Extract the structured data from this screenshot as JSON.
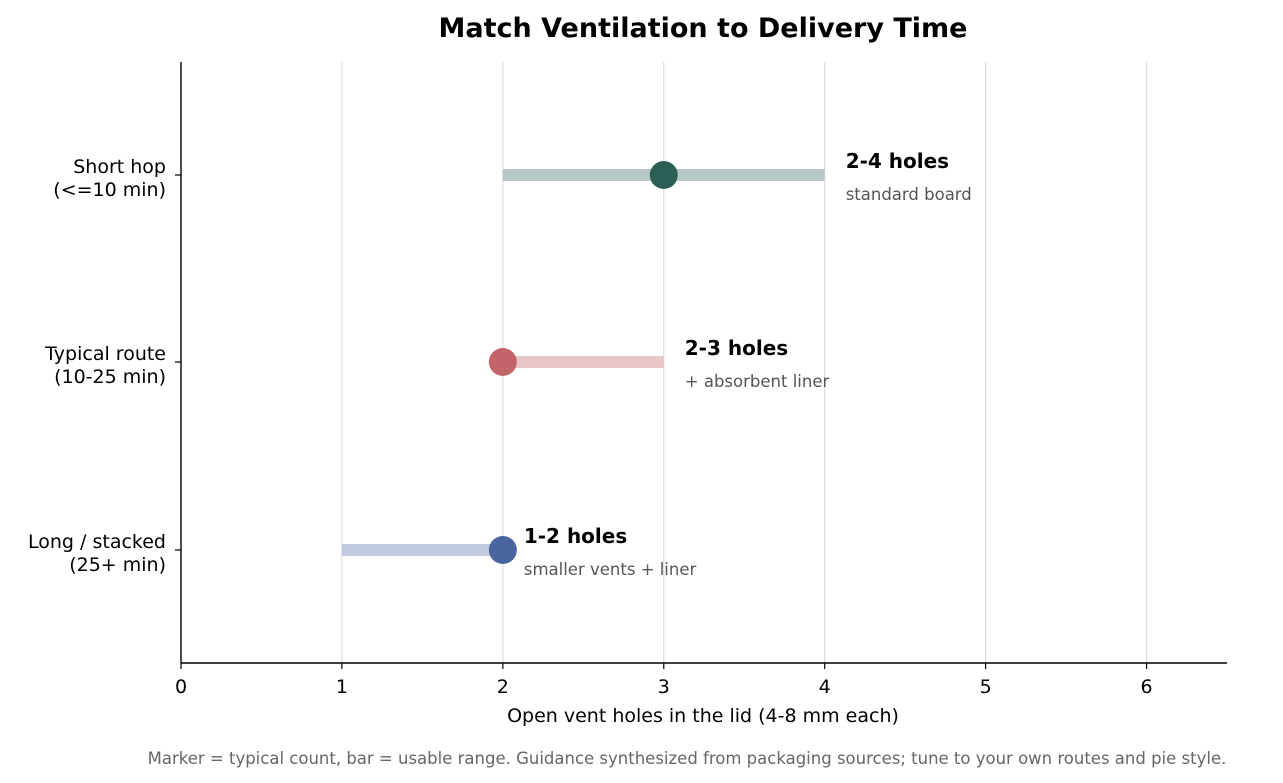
{
  "chart_data": {
    "type": "scatter",
    "title": "Match Ventilation to Delivery Time",
    "xlabel": "Open vent holes in the lid (4-8 mm each)",
    "ylabel": "",
    "xlim": [
      0,
      6.5
    ],
    "xticks": [
      "0",
      "1",
      "2",
      "3",
      "4",
      "5",
      "6"
    ],
    "grid": "vertical",
    "categories": [
      {
        "line1": "Short hop",
        "line2": "(<=10 min)"
      },
      {
        "line1": "Typical route",
        "line2": "(10-25 min)"
      },
      {
        "line1": "Long / stacked",
        "line2": "(25+ min)"
      }
    ],
    "rows": [
      {
        "range": [
          2,
          4
        ],
        "typical": 3,
        "label": "2-4 holes",
        "note": "standard board",
        "marker_color": "#2b5e55",
        "bar_color": "#b7c9c7"
      },
      {
        "range": [
          2,
          3
        ],
        "typical": 2,
        "label": "2-3 holes",
        "note": "+ absorbent liner",
        "marker_color": "#c2646a",
        "bar_color": "#e8c7ca"
      },
      {
        "range": [
          1,
          2
        ],
        "typical": 2,
        "label": "1-2 holes",
        "note": "smaller vents + liner",
        "marker_color": "#4a64a0",
        "bar_color": "#c1c9e0"
      }
    ],
    "footnote": "Marker = typical count, bar = usable range. Guidance synthesized from packaging sources; tune to your own routes and pie style."
  }
}
